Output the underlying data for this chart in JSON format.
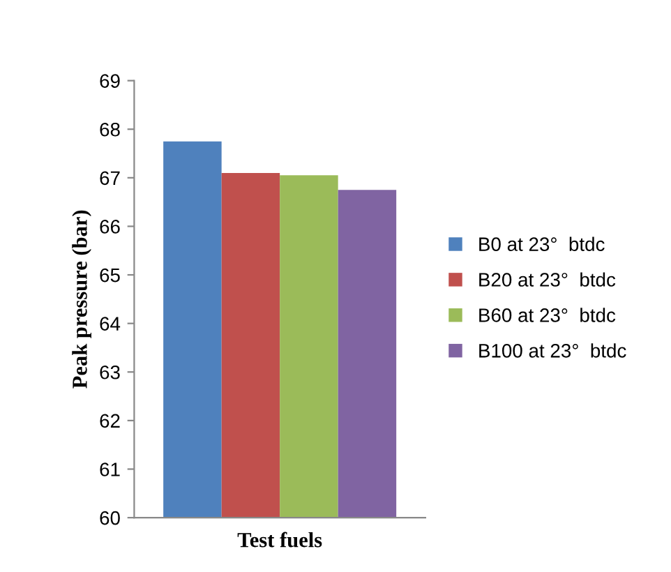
{
  "chart_data": {
    "type": "bar",
    "xlabel": "Test fuels",
    "ylabel": "Peak pressure (bar)",
    "categories": [
      null
    ],
    "series": [
      {
        "name": "B0 at 23°  btdc",
        "color": "#4f81bd",
        "values": [
          67.75
        ]
      },
      {
        "name": "B20 at 23°  btdc",
        "color": "#c0504d",
        "values": [
          67.1
        ]
      },
      {
        "name": "B60 at 23°  btdc",
        "color": "#9bbb59",
        "values": [
          67.05
        ]
      },
      {
        "name": "B100 at 23°  btdc",
        "color": "#8064a2",
        "values": [
          66.75
        ]
      }
    ],
    "ylim": [
      60,
      69
    ],
    "yticks": [
      60,
      61,
      62,
      63,
      64,
      65,
      66,
      67,
      68,
      69
    ],
    "grid": false,
    "legend": "right"
  }
}
